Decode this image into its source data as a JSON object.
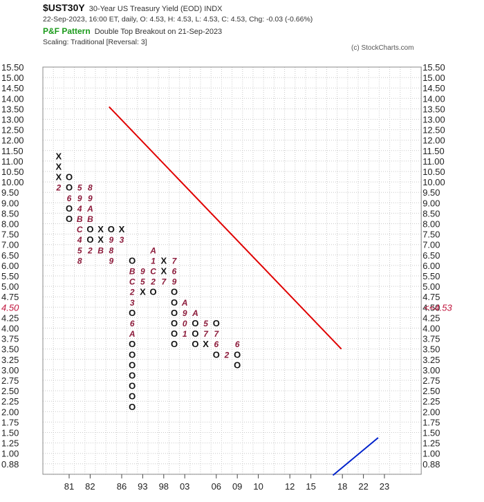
{
  "header": {
    "symbol": "$UST30Y",
    "description": "30-Year US Treasury Yield (EOD)  INDX",
    "quote": "22-Sep-2023, 16:00 ET, daily, O: 4.53, H: 4.53, L: 4.53, C: 4.53, Chg: -0.03 (-0.66%)",
    "pattern_label": "P&F Pattern",
    "pattern_text": "Double Top Breakout on 21-Sep-2023",
    "scaling": "Scaling: Traditional [Reversal: 3]",
    "copyright": "(c) StockCharts.com"
  },
  "chart_data": {
    "type": "point-and-figure",
    "title": "$UST30Y",
    "y_ticks": [
      15.5,
      15.0,
      14.5,
      14.0,
      13.5,
      13.0,
      12.5,
      12.0,
      11.5,
      11.0,
      10.5,
      10.0,
      9.5,
      9.0,
      8.5,
      8.0,
      7.5,
      7.0,
      6.5,
      6.0,
      5.5,
      5.0,
      4.75,
      4.5,
      4.25,
      4.0,
      3.75,
      3.5,
      3.25,
      3.0,
      2.75,
      2.5,
      2.25,
      2.0,
      1.75,
      1.5,
      1.25,
      1.0,
      0.88
    ],
    "y_tick_labels": [
      "15.50",
      "15.00",
      "14.50",
      "14.00",
      "13.50",
      "13.00",
      "12.50",
      "12.00",
      "11.50",
      "11.00",
      "10.50",
      "10.00",
      "9.50",
      "9.00",
      "8.50",
      "8.00",
      "7.50",
      "7.00",
      "6.50",
      "6.00",
      "5.50",
      "5.00",
      "4.75",
      "4.50",
      "4.25",
      "4.00",
      "3.75",
      "3.50",
      "3.25",
      "3.00",
      "2.75",
      "2.50",
      "2.25",
      "2.00",
      "1.75",
      "1.50",
      "1.25",
      "1.00",
      "0.88"
    ],
    "current_value_label": "4.50",
    "current_price_tag": "<<4.53",
    "x_tick_labels": [
      {
        "col": 2,
        "label": "81"
      },
      {
        "col": 4,
        "label": "82"
      },
      {
        "col": 7,
        "label": "86"
      },
      {
        "col": 9,
        "label": "93"
      },
      {
        "col": 11,
        "label": "98"
      },
      {
        "col": 13,
        "label": "03"
      },
      {
        "col": 16,
        "label": "06"
      },
      {
        "col": 18,
        "label": "09"
      },
      {
        "col": 20,
        "label": "10"
      },
      {
        "col": 23,
        "label": "12"
      },
      {
        "col": 25,
        "label": "15"
      },
      {
        "col": 28,
        "label": "18"
      },
      {
        "col": 30,
        "label": "22"
      },
      {
        "col": 32,
        "label": "23"
      }
    ],
    "columns": [
      {
        "type": "X",
        "from": 8,
        "to": 11,
        "marks": {
          "11": "2"
        }
      },
      {
        "type": "O",
        "from": 10,
        "to": 14,
        "marks": {
          "12": "6"
        }
      },
      {
        "type": "X",
        "from": 11,
        "to": 18,
        "marks": {
          "11": "5",
          "12": "9",
          "13": "4",
          "14": "B",
          "15": "C",
          "16": "4",
          "17": "5",
          "18": "8"
        }
      },
      {
        "type": "O",
        "from": 11,
        "to": 17,
        "marks": {
          "11": "8",
          "12": "9",
          "13": "A",
          "14": "B",
          "17": "2"
        }
      },
      {
        "type": "X",
        "from": 15,
        "to": 17,
        "marks": {
          "17": "B"
        }
      },
      {
        "type": "O",
        "from": 15,
        "to": 18,
        "marks": {
          "16": "9",
          "17": "8",
          "18": "9"
        }
      },
      {
        "type": "X",
        "from": 15,
        "to": 16,
        "marks": {
          "16": "3"
        }
      },
      {
        "type": "O",
        "from": 18,
        "to": 32,
        "marks": {
          "12": "A",
          "13": "8",
          "14": "5",
          "15": "3",
          "16": "5",
          "17": "6",
          "19": "B",
          "20": "C",
          "21": "2",
          "22": "3",
          "24": "6",
          "25": "A"
        }
      },
      {
        "type": "X",
        "from": 19,
        "to": 21,
        "marks": {
          "19": "9",
          "20": "5"
        }
      },
      {
        "type": "O",
        "from": 17,
        "to": 21,
        "marks": {
          "17": "A",
          "18": "1",
          "19": "C",
          "20": "2"
        }
      },
      {
        "type": "X",
        "from": 18,
        "to": 20,
        "marks": {
          "20": "7"
        }
      },
      {
        "type": "O",
        "from": 18,
        "to": 26,
        "marks": {
          "18": "7",
          "19": "6",
          "20": "9"
        }
      },
      {
        "type": "X",
        "from": 22,
        "to": 25,
        "marks": {
          "22": "A",
          "23": "9",
          "24": "0",
          "25": "1"
        }
      },
      {
        "type": "O",
        "from": 23,
        "to": 26,
        "marks": {
          "23": "A"
        }
      },
      {
        "type": "X",
        "from": 24,
        "to": 26,
        "marks": {
          "24": "5",
          "25": "7"
        }
      },
      {
        "type": "O",
        "from": 24,
        "to": 27,
        "marks": {
          "25": "7",
          "26": "6"
        }
      },
      {
        "type": "X",
        "from": 27,
        "to": 27,
        "marks": {
          "27": "2"
        }
      },
      {
        "type": "O",
        "from": 26,
        "to": 28,
        "marks": {
          "26": "6"
        }
      }
    ],
    "trend_lines": [
      {
        "name": "bearish-resistance-line",
        "color": "#e00000"
      },
      {
        "name": "bullish-support-line",
        "color": "#0022cc"
      }
    ]
  }
}
